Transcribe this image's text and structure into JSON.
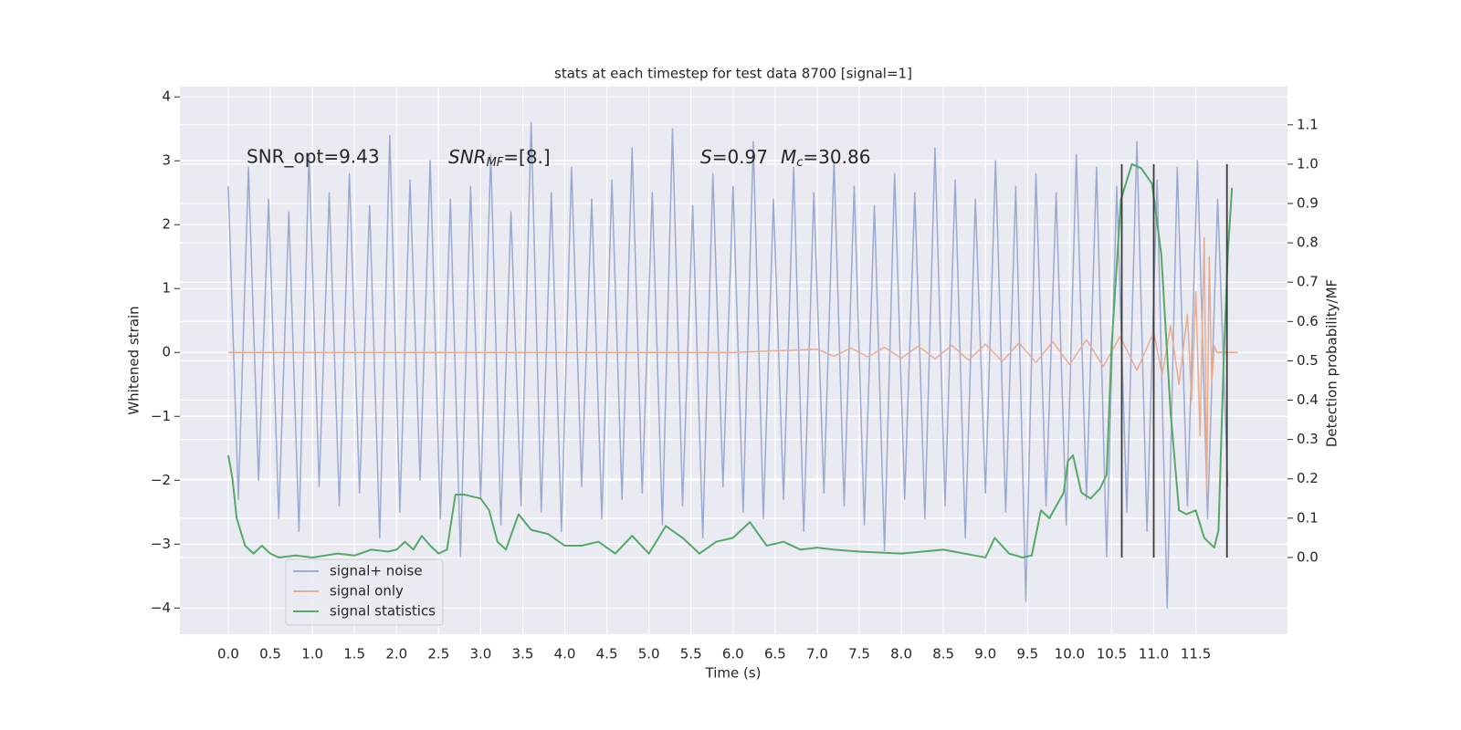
{
  "chart_data": {
    "type": "line",
    "title": "stats at each timestep for test data 8700 [signal=1]",
    "xlabel": "Time (s)",
    "ylabel": "Whitened strain",
    "y2label": "Detection probability/MF",
    "xlim": [
      -0.575,
      12.59
    ],
    "ylim": [
      -4.41,
      4.16
    ],
    "y2lim": [
      -0.195,
      1.197
    ],
    "xticks": [
      {
        "value": 0,
        "label": "0.0"
      },
      {
        "value": 0.5,
        "label": "0.5"
      },
      {
        "value": 1,
        "label": "1.0"
      },
      {
        "value": 1.5,
        "label": "1.5"
      },
      {
        "value": 2,
        "label": "2.0"
      },
      {
        "value": 2.5,
        "label": "2.5"
      },
      {
        "value": 3,
        "label": "3.0"
      },
      {
        "value": 3.5,
        "label": "3.5"
      },
      {
        "value": 4,
        "label": "4.0"
      },
      {
        "value": 4.5,
        "label": "4.5"
      },
      {
        "value": 5,
        "label": "5.0"
      },
      {
        "value": 5.5,
        "label": "5.5"
      },
      {
        "value": 6,
        "label": "6.0"
      },
      {
        "value": 6.5,
        "label": "6.5"
      },
      {
        "value": 7,
        "label": "7.0"
      },
      {
        "value": 7.5,
        "label": "7.5"
      },
      {
        "value": 8,
        "label": "8.0"
      },
      {
        "value": 8.5,
        "label": "8.5"
      },
      {
        "value": 9,
        "label": "9.0"
      },
      {
        "value": 9.5,
        "label": "9.5"
      },
      {
        "value": 10,
        "label": "10.0"
      },
      {
        "value": 10.5,
        "label": "10.5"
      },
      {
        "value": 11,
        "label": "11.0"
      },
      {
        "value": 11.5,
        "label": "11.5"
      }
    ],
    "yticks": [
      {
        "value": -4,
        "label": "−4"
      },
      {
        "value": -3,
        "label": "−3"
      },
      {
        "value": -2,
        "label": "−2"
      },
      {
        "value": -1,
        "label": "−1"
      },
      0,
      1,
      2,
      3,
      4
    ],
    "y2ticks": [
      {
        "value": 0,
        "label": "0.0"
      },
      {
        "value": 0.1,
        "label": "0.1"
      },
      {
        "value": 0.2,
        "label": "0.2"
      },
      {
        "value": 0.3,
        "label": "0.3"
      },
      {
        "value": 0.4,
        "label": "0.4"
      },
      {
        "value": 0.5,
        "label": "0.5"
      },
      {
        "value": 0.6,
        "label": "0.6"
      },
      {
        "value": 0.7,
        "label": "0.7"
      },
      {
        "value": 0.8,
        "label": "0.8"
      },
      {
        "value": 0.9,
        "label": "0.9"
      },
      {
        "value": 1,
        "label": "1.0"
      },
      {
        "value": 1.1,
        "label": "1.1"
      }
    ],
    "grid": true,
    "legend": "lower left",
    "annotations": {
      "snr_opt": "SNR_opt=9.43",
      "snr_mf": [
        "SNR",
        "MF",
        "=[8.]"
      ],
      "stats": [
        "S",
        "=0.97",
        "M",
        "c",
        "=30.86"
      ]
    },
    "series": [
      {
        "name": "signal+ noise",
        "color": "#9aaad0",
        "x": [
          0,
          0.12,
          0.24,
          0.36,
          0.48,
          0.6,
          0.72,
          0.84,
          0.96,
          1.08,
          1.2,
          1.32,
          1.44,
          1.56,
          1.68,
          1.8,
          1.92,
          2.04,
          2.16,
          2.28,
          2.4,
          2.52,
          2.64,
          2.76,
          2.88,
          3,
          3.12,
          3.24,
          3.36,
          3.48,
          3.6,
          3.72,
          3.84,
          3.96,
          4.08,
          4.2,
          4.32,
          4.44,
          4.56,
          4.68,
          4.8,
          4.92,
          5.04,
          5.16,
          5.28,
          5.4,
          5.52,
          5.64,
          5.76,
          5.88,
          6,
          6.12,
          6.24,
          6.36,
          6.48,
          6.6,
          6.72,
          6.84,
          6.96,
          7.08,
          7.2,
          7.32,
          7.44,
          7.56,
          7.68,
          7.8,
          7.92,
          8.04,
          8.16,
          8.28,
          8.4,
          8.52,
          8.64,
          8.76,
          8.88,
          9,
          9.12,
          9.24,
          9.36,
          9.48,
          9.6,
          9.72,
          9.84,
          9.96,
          10.08,
          10.2,
          10.32,
          10.44,
          10.56,
          10.68,
          10.8,
          10.92,
          11.04,
          11.16,
          11.28,
          11.4,
          11.52,
          11.64,
          11.76,
          11.88
        ],
        "values": [
          2.6,
          -2.3,
          2.9,
          -2.0,
          2.4,
          -2.6,
          2.2,
          -2.8,
          3.1,
          -2.1,
          2.5,
          -2.4,
          2.8,
          -2.2,
          2.3,
          -2.9,
          3.4,
          -2.5,
          2.7,
          -2.0,
          3.0,
          -2.6,
          2.4,
          -3.2,
          2.6,
          -2.3,
          3.1,
          -2.7,
          2.2,
          -2.4,
          3.6,
          -2.5,
          2.5,
          -2.8,
          2.9,
          -2.1,
          2.4,
          -2.6,
          2.7,
          -2.3,
          3.2,
          -2.2,
          2.5,
          -2.7,
          3.5,
          -2.4,
          2.3,
          -2.9,
          2.8,
          -2.1,
          2.6,
          -2.5,
          3.3,
          -2.6,
          2.4,
          -2.3,
          2.9,
          -2.8,
          2.5,
          -2.2,
          3.0,
          -2.4,
          2.6,
          -2.7,
          2.3,
          -3.1,
          2.8,
          -2.3,
          2.5,
          -2.6,
          3.2,
          -2.4,
          2.7,
          -2.9,
          2.4,
          -2.2,
          3.0,
          -2.5,
          2.6,
          -3.9,
          2.8,
          -2.4,
          2.5,
          -2.7,
          3.1,
          -2.3,
          2.9,
          -3.2,
          2.6,
          -2.5,
          3.3,
          -2.8,
          2.7,
          -4.0,
          2.9,
          -2.4,
          3.0,
          -2.6,
          2.4,
          -2.1
        ]
      },
      {
        "name": "signal only",
        "color": "#e8ad90",
        "x": [
          0,
          6,
          7,
          7.2,
          7.4,
          7.6,
          7.8,
          8,
          8.2,
          8.4,
          8.6,
          8.8,
          9,
          9.2,
          9.4,
          9.6,
          9.8,
          10,
          10.2,
          10.4,
          10.6,
          10.8,
          11,
          11.1,
          11.2,
          11.3,
          11.4,
          11.45,
          11.5,
          11.55,
          11.6,
          11.63,
          11.66,
          11.69,
          11.72,
          11.75,
          12
        ],
        "values": [
          0,
          0,
          0.05,
          -0.06,
          0.07,
          -0.07,
          0.08,
          -0.09,
          0.1,
          -0.1,
          0.11,
          -0.12,
          0.13,
          -0.14,
          0.15,
          -0.16,
          0.17,
          -0.19,
          0.2,
          -0.22,
          0.25,
          -0.28,
          0.32,
          -0.36,
          0.42,
          -0.5,
          0.6,
          -0.75,
          0.95,
          -1.3,
          1.8,
          -2.2,
          1.5,
          -0.5,
          0.1,
          0,
          0
        ]
      },
      {
        "name": "signal statistics",
        "color": "#55a868",
        "axis": "y2",
        "x": [
          0,
          0.05,
          0.1,
          0.2,
          0.3,
          0.4,
          0.5,
          0.6,
          0.8,
          1,
          1.3,
          1.5,
          1.7,
          1.9,
          2,
          2.1,
          2.2,
          2.3,
          2.4,
          2.5,
          2.6,
          2.7,
          2.8,
          3,
          3.1,
          3.2,
          3.3,
          3.45,
          3.6,
          3.8,
          4,
          4.2,
          4.4,
          4.6,
          4.8,
          5,
          5.2,
          5.4,
          5.6,
          5.8,
          6,
          6.2,
          6.4,
          6.6,
          6.8,
          7,
          7.2,
          7.5,
          8,
          8.5,
          9,
          9.11,
          9.28,
          9.44,
          9.55,
          9.66,
          9.76,
          9.93,
          9.98,
          10.04,
          10.14,
          10.25,
          10.36,
          10.44,
          10.5,
          10.61,
          10.74,
          10.85,
          10.98,
          11.09,
          11.2,
          11.3,
          11.39,
          11.5,
          11.6,
          11.72,
          11.77,
          11.83,
          11.88,
          11.93
        ],
        "values": [
          0.26,
          0.2,
          0.1,
          0.03,
          0.01,
          0.03,
          0.01,
          0.0,
          0.005,
          0.0,
          0.01,
          0.005,
          0.02,
          0.015,
          0.02,
          0.04,
          0.02,
          0.055,
          0.03,
          0.01,
          0.02,
          0.16,
          0.16,
          0.15,
          0.12,
          0.04,
          0.02,
          0.11,
          0.07,
          0.06,
          0.03,
          0.03,
          0.04,
          0.01,
          0.055,
          0.01,
          0.08,
          0.05,
          0.01,
          0.04,
          0.05,
          0.09,
          0.03,
          0.04,
          0.02,
          0.025,
          0.02,
          0.015,
          0.01,
          0.02,
          0.0,
          0.05,
          0.01,
          0.0,
          0.005,
          0.12,
          0.1,
          0.165,
          0.245,
          0.26,
          0.165,
          0.15,
          0.175,
          0.21,
          0.54,
          0.91,
          1.0,
          0.99,
          0.95,
          0.77,
          0.37,
          0.12,
          0.11,
          0.12,
          0.05,
          0.025,
          0.07,
          0.49,
          0.77,
          0.94
        ]
      }
    ],
    "vlines": {
      "x": [
        10.62,
        11.0,
        11.87
      ],
      "ymin": 0,
      "ymax": 1,
      "axis": "y2",
      "color": "#3a3a3a"
    }
  }
}
